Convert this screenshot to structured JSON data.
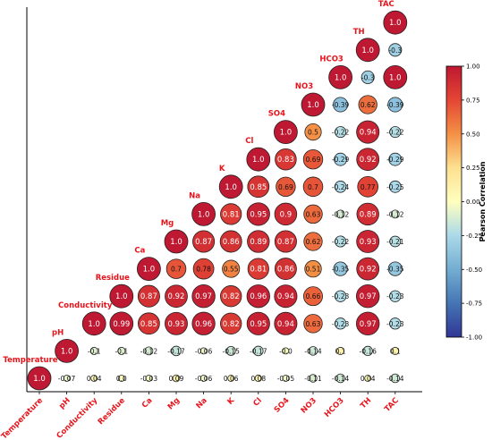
{
  "chart_data": {
    "type": "heatmap",
    "variables": [
      "Temperature",
      "pH",
      "Conductivity",
      "Residue",
      "Ca",
      "Mg",
      "Na",
      "K",
      "Cl",
      "SO4",
      "NO3",
      "HCO3",
      "TH",
      "TAC"
    ],
    "rows": [
      [
        "1.0",
        "-0.07",
        "0.04",
        "0.0",
        "-0.03",
        "0.09",
        "-0.06",
        "0.06",
        "0.08",
        "-0.05",
        "-0.11",
        "-0.14",
        "0.04",
        "-0.14"
      ],
      [
        "1.0",
        "-0.1",
        "-0.1",
        "-0.12",
        "-0.17",
        "-0.06",
        "-0.15",
        "-0.17",
        "-0.0",
        "-0.14",
        "0.1",
        "-0.16",
        "0.1"
      ],
      [
        "1.0",
        "0.99",
        "0.85",
        "0.93",
        "0.96",
        "0.82",
        "0.95",
        "0.94",
        "0.63",
        "-0.23",
        "0.97",
        "-0.23"
      ],
      [
        "1.0",
        "0.87",
        "0.92",
        "0.97",
        "0.82",
        "0.96",
        "0.94",
        "0.66",
        "-0.23",
        "0.97",
        "-0.23"
      ],
      [
        "1.0",
        "0.7",
        "0.78",
        "0.55",
        "0.81",
        "0.86",
        "0.51",
        "-0.35",
        "0.92",
        "-0.35"
      ],
      [
        "1.0",
        "0.87",
        "0.86",
        "0.89",
        "0.87",
        "0.62",
        "-0.22",
        "0.93",
        "-0.21"
      ],
      [
        "1.0",
        "0.81",
        "0.95",
        "0.9",
        "0.63",
        "-0.12",
        "0.89",
        "-0.12"
      ],
      [
        "1.0",
        "0.85",
        "0.69",
        "0.7",
        "-0.24",
        "0.77",
        "-0.25"
      ],
      [
        "1.0",
        "0.83",
        "0.69",
        "-0.29",
        "0.92",
        "-0.29"
      ],
      [
        "1.0",
        "0.5",
        "-0.22",
        "0.94",
        "-0.22"
      ],
      [
        "1.0",
        "-0.39",
        "0.62",
        "-0.39"
      ],
      [
        "1.0",
        "-0.3",
        "1.0"
      ],
      [
        "1.0",
        "-0.3"
      ],
      [
        "1.0"
      ]
    ],
    "colorbar": {
      "label": "Pearson Correlation",
      "ticks": [
        "1.00",
        "0.75",
        "0.50",
        "0.25",
        "0.00",
        "-0.25",
        "-0.50",
        "-0.75",
        "-1.00"
      ],
      "range": [
        -1,
        1
      ]
    }
  }
}
